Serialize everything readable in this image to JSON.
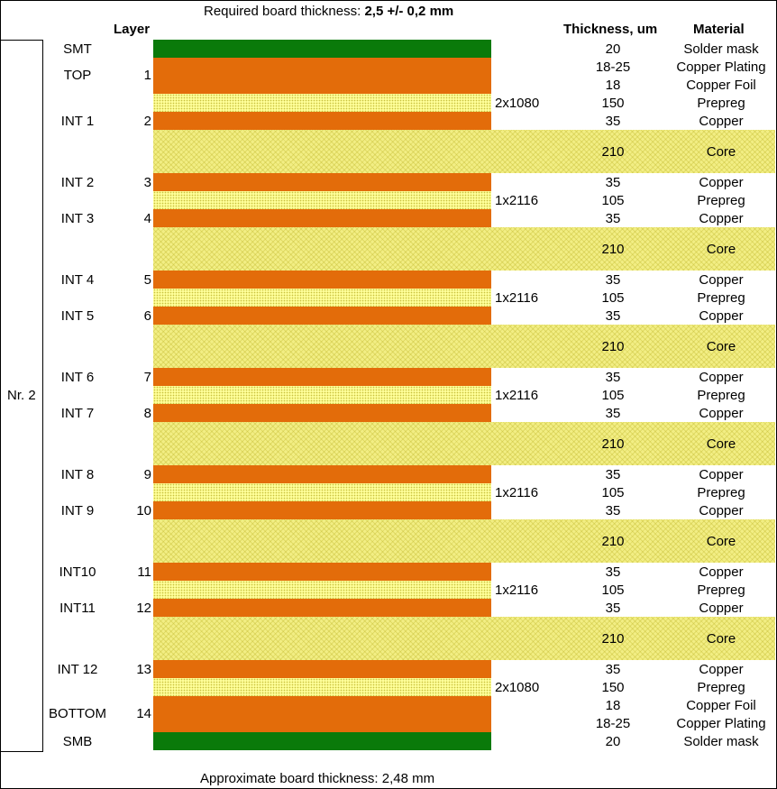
{
  "header": {
    "required_label": "Required board thickness: ",
    "required_value": "2,5 +/- 0,2 mm",
    "col_layer": "Layer",
    "col_thickness": "Thickness, um",
    "col_material": "Material"
  },
  "group_label": "Nr. 2",
  "footer": "Approximate board thickness: 2,48 mm",
  "colors": {
    "solder_mask": "#0a7a0a",
    "copper": "#e36c0a",
    "prepreg": "#ffff99",
    "core": "#f2ee84"
  },
  "rows": [
    {
      "name": "SMT",
      "num": "",
      "prepreg": "",
      "thickness": "20",
      "material": "Solder mask"
    },
    {
      "name": "TOP",
      "num": "1",
      "prepreg": "",
      "thickness": "18-25",
      "material": "Copper Plating"
    },
    {
      "name": "",
      "num": "",
      "prepreg": "",
      "thickness": "18",
      "material": "Copper Foil"
    },
    {
      "name": "",
      "num": "",
      "prepreg": "2x1080",
      "thickness": "150",
      "material": "Prepreg"
    },
    {
      "name": "INT 1",
      "num": "2",
      "prepreg": "",
      "thickness": "35",
      "material": "Copper"
    },
    {
      "name": "",
      "num": "",
      "prepreg": "",
      "thickness": "210",
      "material": "Core"
    },
    {
      "name": "INT 2",
      "num": "3",
      "prepreg": "",
      "thickness": "35",
      "material": "Copper"
    },
    {
      "name": "",
      "num": "",
      "prepreg": "1x2116",
      "thickness": "105",
      "material": "Prepreg"
    },
    {
      "name": "INT 3",
      "num": "4",
      "prepreg": "",
      "thickness": "35",
      "material": "Copper"
    },
    {
      "name": "",
      "num": "",
      "prepreg": "",
      "thickness": "210",
      "material": "Core"
    },
    {
      "name": "INT 4",
      "num": "5",
      "prepreg": "",
      "thickness": "35",
      "material": "Copper"
    },
    {
      "name": "",
      "num": "",
      "prepreg": "1x2116",
      "thickness": "105",
      "material": "Prepreg"
    },
    {
      "name": "INT 5",
      "num": "6",
      "prepreg": "",
      "thickness": "35",
      "material": "Copper"
    },
    {
      "name": "",
      "num": "",
      "prepreg": "",
      "thickness": "210",
      "material": "Core"
    },
    {
      "name": "INT 6",
      "num": "7",
      "prepreg": "",
      "thickness": "35",
      "material": "Copper"
    },
    {
      "name": "",
      "num": "",
      "prepreg": "1x2116",
      "thickness": "105",
      "material": "Prepreg"
    },
    {
      "name": "INT 7",
      "num": "8",
      "prepreg": "",
      "thickness": "35",
      "material": "Copper"
    },
    {
      "name": "",
      "num": "",
      "prepreg": "",
      "thickness": "210",
      "material": "Core"
    },
    {
      "name": "INT 8",
      "num": "9",
      "prepreg": "",
      "thickness": "35",
      "material": "Copper"
    },
    {
      "name": "",
      "num": "",
      "prepreg": "1x2116",
      "thickness": "105",
      "material": "Prepreg"
    },
    {
      "name": "INT 9",
      "num": "10",
      "prepreg": "",
      "thickness": "35",
      "material": "Copper"
    },
    {
      "name": "",
      "num": "",
      "prepreg": "",
      "thickness": "210",
      "material": "Core"
    },
    {
      "name": "INT10",
      "num": "11",
      "prepreg": "",
      "thickness": "35",
      "material": "Copper"
    },
    {
      "name": "",
      "num": "",
      "prepreg": "1x2116",
      "thickness": "105",
      "material": "Prepreg"
    },
    {
      "name": "INT11",
      "num": "12",
      "prepreg": "",
      "thickness": "35",
      "material": "Copper"
    },
    {
      "name": "",
      "num": "",
      "prepreg": "",
      "thickness": "210",
      "material": "Core"
    },
    {
      "name": "INT 12",
      "num": "13",
      "prepreg": "",
      "thickness": "35",
      "material": "Copper"
    },
    {
      "name": "",
      "num": "",
      "prepreg": "2x1080",
      "thickness": "150",
      "material": "Prepreg"
    },
    {
      "name": "",
      "num": "",
      "prepreg": "",
      "thickness": "18",
      "material": "Copper Foil"
    },
    {
      "name": "BOTTOM",
      "num": "14",
      "prepreg": "",
      "thickness": "18-25",
      "material": "Copper Plating"
    },
    {
      "name": "SMB",
      "num": "",
      "prepreg": "",
      "thickness": "20",
      "material": "Solder mask"
    }
  ]
}
